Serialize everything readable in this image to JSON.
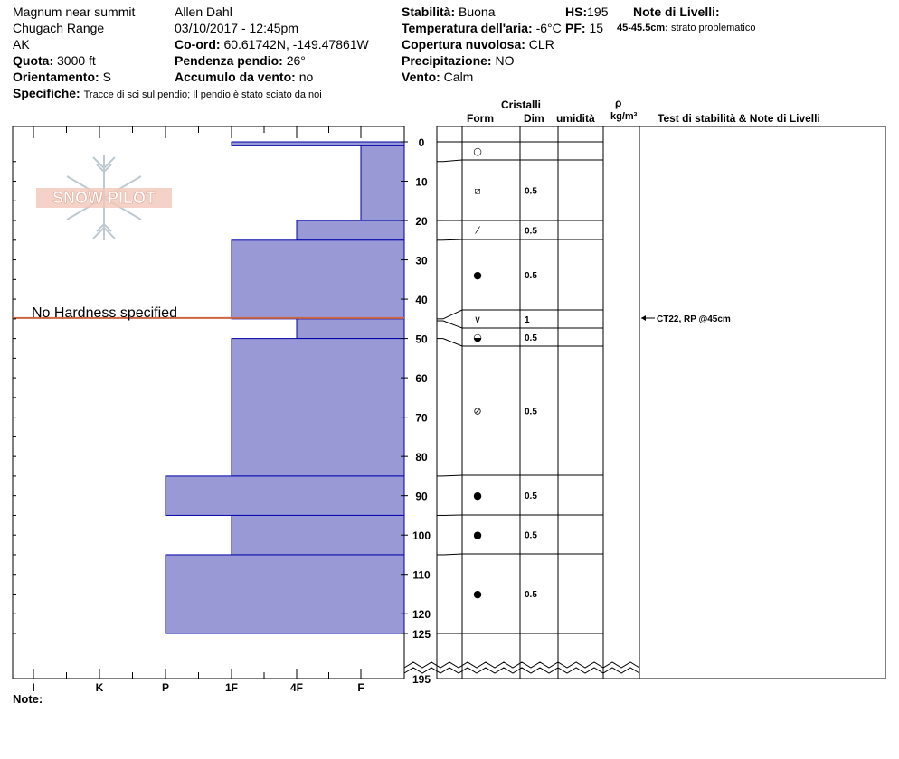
{
  "header": {
    "location": "Magnum near summit",
    "range": "Chugach Range",
    "state": "AK",
    "elevation_label": "Quota:",
    "elevation_value": "3000 ft",
    "aspect_label": "Orientamento:",
    "aspect_value": "S",
    "specifics_label": "Specifiche:",
    "specifics_value": "Tracce di sci sul pendio;  Il pendio è stato sciato da noi",
    "observer": "Allen Dahl",
    "datetime": "03/10/2017 - 12:45pm",
    "coord_label": "Co-ord:",
    "coord_value": "60.61742N, -149.47861W",
    "slope_label": "Pendenza pendio:",
    "slope_value": "26°",
    "wind_load_label": "Accumulo da vento:",
    "wind_load_value": "no",
    "stability_label": "Stabilità:",
    "stability_value": "Buona",
    "air_temp_label": "Temperatura dell'aria:",
    "air_temp_value": "-6°C",
    "cloud_label": "Copertura nuvolosa:",
    "cloud_value": "CLR",
    "precip_label": "Precipitazione:",
    "precip_value": "NO",
    "wind_label": "Vento:",
    "wind_value": "Calm",
    "hs_label": "HS:",
    "hs_value": "195",
    "pf_label": "PF:",
    "pf_value": "15",
    "layer_notes_label": "Note di Livelli:",
    "layer_note_range": "45-45.5cm:",
    "layer_note_text": "strato problematico"
  },
  "columns": {
    "crystals": "Cristalli",
    "form": "Form",
    "dim": "Dim",
    "humidity": "umidità",
    "rho": "ρ",
    "density_unit": "kg/m³",
    "stability_notes": "Test di stabilità & Note di Livelli"
  },
  "footer": {
    "notes_label": "Note:"
  },
  "logo_text": "SNOW PILOT",
  "colors": {
    "layer_fill": "#9999d6",
    "layer_stroke": "#0000aa",
    "problem_line": "#cc6644",
    "logo": "#e8a898"
  },
  "chart_data": {
    "type": "bar",
    "orientation": "horizontal",
    "hardness_scale": [
      "I",
      "K",
      "P",
      "1F",
      "4F",
      "F"
    ],
    "depth_axis_ticks": [
      0,
      10,
      20,
      30,
      40,
      50,
      60,
      70,
      80,
      90,
      100,
      110,
      120,
      125
    ],
    "depth_axis_bottom_label": 195,
    "ylim": [
      0,
      125
    ],
    "hardness_layers": [
      {
        "top": 0,
        "bottom": 1,
        "hardness": "1F"
      },
      {
        "top": 1,
        "bottom": 20,
        "hardness": "F"
      },
      {
        "top": 20,
        "bottom": 25,
        "hardness": "4F"
      },
      {
        "top": 25,
        "bottom": 45,
        "hardness": "1F"
      },
      {
        "top": 45,
        "bottom": 50,
        "hardness": "4F"
      },
      {
        "top": 50,
        "bottom": 85,
        "hardness": "1F"
      },
      {
        "top": 85,
        "bottom": 95,
        "hardness": "P"
      },
      {
        "top": 95,
        "bottom": 105,
        "hardness": "1F"
      },
      {
        "top": 105,
        "bottom": 125,
        "hardness": "P"
      }
    ],
    "no_hardness_note": "No Hardness specified",
    "no_hardness_depth": 45,
    "crystal_layers": [
      {
        "top": 0,
        "bottom": 5,
        "form": "new snow",
        "symbol": "○",
        "dim": ""
      },
      {
        "top": 5,
        "bottom": 20,
        "form": "faceted rounded",
        "symbol": "⧄",
        "dim": "0.5"
      },
      {
        "top": 20,
        "bottom": 25,
        "form": "decomposed",
        "symbol": "⁄",
        "dim": "0.5"
      },
      {
        "top": 25,
        "bottom": 45,
        "form": "rounded grains",
        "symbol": "●",
        "dim": "0.5"
      },
      {
        "top": 45,
        "bottom": 45.5,
        "form": "surface hoar",
        "symbol": "∨",
        "dim": "1"
      },
      {
        "top": 45.5,
        "bottom": 50,
        "form": "melt forms",
        "symbol": "◒",
        "dim": "0.5"
      },
      {
        "top": 50,
        "bottom": 85,
        "form": "rounded faceted",
        "symbol": "⊘",
        "dim": "0.5"
      },
      {
        "top": 85,
        "bottom": 95,
        "form": "rounded grains",
        "symbol": "●",
        "dim": "0.5"
      },
      {
        "top": 95,
        "bottom": 105,
        "form": "rounded grains",
        "symbol": "●",
        "dim": "0.5"
      },
      {
        "top": 105,
        "bottom": 125,
        "form": "rounded grains",
        "symbol": "●",
        "dim": "0.5"
      }
    ],
    "stability_tests": [
      {
        "depth": 45,
        "text": "CT22, RP @45cm"
      }
    ]
  }
}
